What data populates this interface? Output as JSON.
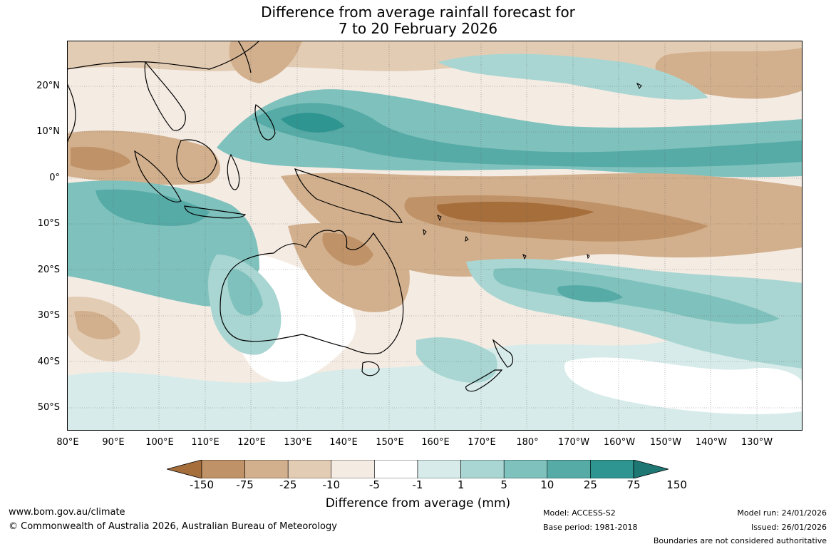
{
  "title": {
    "line1": "Difference from average rainfall forecast for",
    "line2": "7 to 20 February 2026"
  },
  "latitude_labels": [
    "20°N",
    "10°N",
    "0°",
    "10°S",
    "20°S",
    "30°S",
    "40°S",
    "50°S"
  ],
  "longitude_labels": [
    "80°E",
    "90°E",
    "100°E",
    "110°E",
    "120°E",
    "130°E",
    "140°E",
    "150°E",
    "160°E",
    "170°E",
    "180°",
    "170°W",
    "160°W",
    "150°W",
    "140°W",
    "130°W"
  ],
  "colorbar": {
    "labels": [
      "-150",
      "-75",
      "-25",
      "-10",
      "-5",
      "-1",
      "1",
      "5",
      "10",
      "25",
      "75",
      "150"
    ],
    "colors": [
      "#a66e3b",
      "#c09268",
      "#d2b08d",
      "#e3ccb4",
      "#f4ebe3",
      "#ffffff",
      "#d7ecea",
      "#a9d6d2",
      "#7fc1bc",
      "#56aba7",
      "#2f9590",
      "#1e7773"
    ],
    "title": "Difference from average (mm)"
  },
  "footer": {
    "website": "www.bom.gov.au/climate",
    "copyright": "© Commonwealth of Australia 2026, Australian Bureau of Meteorology",
    "model": "Model: ACCESS-S2",
    "base_period": "Base period: 1981-2018",
    "model_run": "Model run: 24/01/2026",
    "issued": "Issued: 26/01/2026",
    "disclaimer": "Boundaries are not considered authoritative"
  }
}
